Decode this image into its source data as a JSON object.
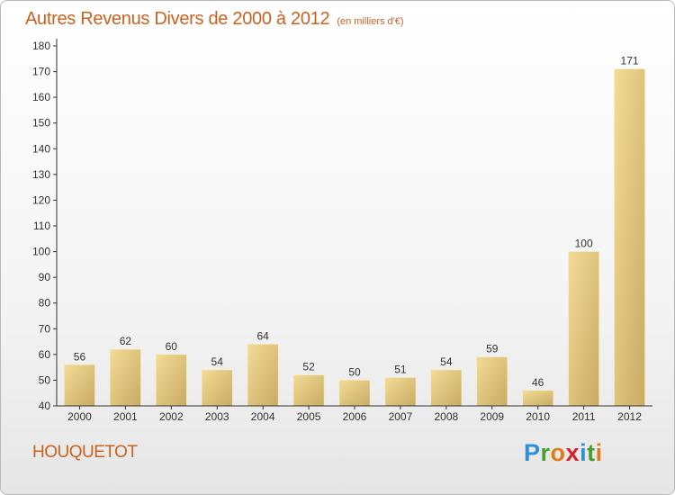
{
  "header": {
    "title": "Autres Revenus Divers de 2000 à 2012",
    "subtitle": "(en milliers d'€)"
  },
  "footer": {
    "town": "HOUQUETOT",
    "logo_letters": [
      "P",
      "r",
      "o",
      "x",
      "i",
      "t",
      "i"
    ],
    "logo_colors": [
      "#2f8fd6",
      "#4a9e2f",
      "#e07b18",
      "#d8212c",
      "#2f8fd6",
      "#4a9e2f",
      "#e07b18"
    ]
  },
  "colors": {
    "bar_light": "#f3dc96",
    "bar_dark": "#c9aa63",
    "axis": "#333333",
    "text": "#333333",
    "accent": "#c9621f"
  },
  "chart_data": {
    "type": "bar",
    "categories": [
      "2000",
      "2001",
      "2002",
      "2003",
      "2004",
      "2005",
      "2006",
      "2007",
      "2008",
      "2009",
      "2010",
      "2011",
      "2012"
    ],
    "values": [
      56,
      62,
      60,
      54,
      64,
      52,
      50,
      51,
      54,
      59,
      46,
      100,
      171
    ],
    "y_ticks": [
      40,
      50,
      60,
      70,
      80,
      90,
      100,
      110,
      120,
      130,
      140,
      150,
      160,
      170,
      180
    ],
    "ylim": [
      40,
      180
    ],
    "grid": false,
    "legend": "none"
  }
}
